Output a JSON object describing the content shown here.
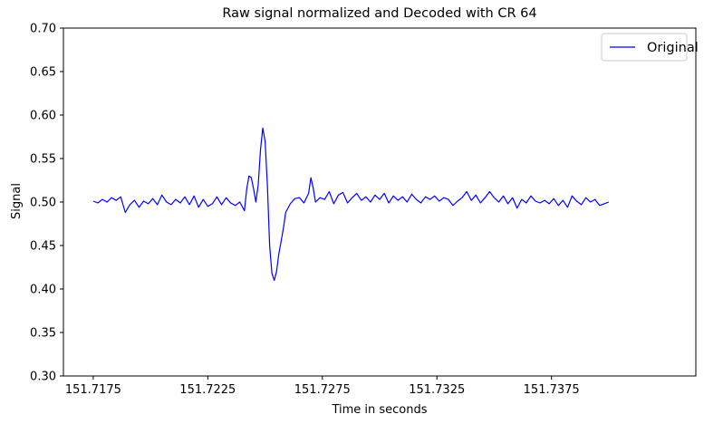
{
  "chart_data": {
    "type": "line",
    "title": "Raw signal normalized and Decoded with CR 64",
    "xlabel": "Time in seconds",
    "ylabel": "Signal",
    "xlim": [
      151.7162,
      151.7438
    ],
    "ylim": [
      0.3,
      0.7
    ],
    "xticks": [
      "151.7175",
      "151.7225",
      "151.7275",
      "151.7325",
      "151.7375"
    ],
    "xtick_values": [
      151.7175,
      151.7225,
      151.7275,
      151.7325,
      151.7375
    ],
    "yticks": [
      "0.30",
      "0.35",
      "0.40",
      "0.45",
      "0.50",
      "0.55",
      "0.60",
      "0.65",
      "0.70"
    ],
    "ytick_values": [
      0.3,
      0.35,
      0.4,
      0.45,
      0.5,
      0.55,
      0.6,
      0.65,
      0.7
    ],
    "legend_position": "top-right",
    "grid": false,
    "series": [
      {
        "name": "Original",
        "color": "#0000ff",
        "x": [
          151.7175,
          151.7177,
          151.7179,
          151.7181,
          151.7183,
          151.7185,
          151.7187,
          151.7189,
          151.7191,
          151.7193,
          151.7195,
          151.7197,
          151.7199,
          151.7201,
          151.7203,
          151.7205,
          151.7207,
          151.7209,
          151.7211,
          151.7213,
          151.7215,
          151.7217,
          151.7219,
          151.7221,
          151.7223,
          151.7225,
          151.7227,
          151.7229,
          151.7231,
          151.7233,
          151.7235,
          151.7237,
          151.7239,
          151.7241,
          151.7242,
          151.7243,
          151.7244,
          151.7245,
          151.7246,
          151.7247,
          151.7248,
          151.7249,
          151.725,
          151.7251,
          151.7252,
          151.7253,
          151.7254,
          151.7255,
          151.7256,
          151.7257,
          151.7258,
          151.7259,
          151.7261,
          151.7263,
          151.7265,
          151.7267,
          151.7269,
          151.727,
          151.7271,
          151.7272,
          151.7274,
          151.7276,
          151.7278,
          151.728,
          151.7282,
          151.7284,
          151.7286,
          151.7288,
          151.729,
          151.7292,
          151.7294,
          151.7296,
          151.7298,
          151.73,
          151.7302,
          151.7304,
          151.7306,
          151.7308,
          151.731,
          151.7312,
          151.7314,
          151.7316,
          151.7318,
          151.732,
          151.7322,
          151.7324,
          151.7326,
          151.7328,
          151.733,
          151.7332,
          151.7334,
          151.7336,
          151.7338,
          151.734,
          151.7342,
          151.7344,
          151.7346,
          151.7348,
          151.735,
          151.7352,
          151.7354,
          151.7356,
          151.7358,
          151.736,
          151.7362,
          151.7364,
          151.7366,
          151.7368,
          151.737,
          151.7372,
          151.7374,
          151.7376,
          151.7378,
          151.738,
          151.7382,
          151.7384,
          151.7386,
          151.7388,
          151.739,
          151.7392,
          151.7394,
          151.7396,
          151.7398,
          151.74
        ],
        "y": [
          0.501,
          0.499,
          0.503,
          0.5,
          0.505,
          0.502,
          0.506,
          0.488,
          0.497,
          0.502,
          0.494,
          0.501,
          0.498,
          0.504,
          0.497,
          0.508,
          0.5,
          0.497,
          0.503,
          0.499,
          0.506,
          0.497,
          0.507,
          0.494,
          0.503,
          0.495,
          0.498,
          0.506,
          0.497,
          0.505,
          0.499,
          0.496,
          0.5,
          0.49,
          0.515,
          0.53,
          0.528,
          0.515,
          0.5,
          0.52,
          0.56,
          0.585,
          0.57,
          0.52,
          0.45,
          0.418,
          0.41,
          0.42,
          0.44,
          0.455,
          0.47,
          0.488,
          0.498,
          0.504,
          0.505,
          0.499,
          0.51,
          0.528,
          0.516,
          0.5,
          0.505,
          0.503,
          0.512,
          0.498,
          0.508,
          0.511,
          0.499,
          0.505,
          0.51,
          0.502,
          0.506,
          0.5,
          0.508,
          0.503,
          0.51,
          0.499,
          0.507,
          0.502,
          0.506,
          0.5,
          0.509,
          0.503,
          0.499,
          0.506,
          0.503,
          0.507,
          0.501,
          0.505,
          0.503,
          0.496,
          0.501,
          0.505,
          0.512,
          0.502,
          0.508,
          0.499,
          0.505,
          0.512,
          0.505,
          0.5,
          0.507,
          0.498,
          0.505,
          0.493,
          0.503,
          0.499,
          0.507,
          0.501,
          0.499,
          0.502,
          0.498,
          0.504,
          0.496,
          0.502,
          0.494,
          0.507,
          0.501,
          0.497,
          0.505,
          0.5,
          0.503,
          0.496,
          0.498,
          0.5
        ]
      }
    ]
  }
}
